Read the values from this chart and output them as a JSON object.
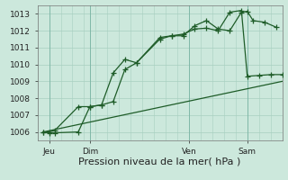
{
  "xlabel": "Pression niveau de la mer( hPa )",
  "ylim": [
    1005.5,
    1013.5
  ],
  "xlim": [
    0,
    21
  ],
  "yticks": [
    1006,
    1007,
    1008,
    1009,
    1010,
    1011,
    1012,
    1013
  ],
  "xtick_positions": [
    1,
    4.5,
    13,
    18
  ],
  "xtick_labels": [
    "Jeu",
    "Dim",
    "Ven",
    "Sam"
  ],
  "vline_positions": [
    1,
    4.5,
    13,
    18
  ],
  "bg_color": "#cce8dc",
  "line_color": "#1e5c28",
  "grid_color": "#a8cfc0",
  "line1_x": [
    0.5,
    1.0,
    1.5,
    3.5,
    4.5,
    5.5,
    6.5,
    7.5,
    8.5,
    10.5,
    11.5,
    12.5,
    13.5,
    14.5,
    15.5,
    16.5,
    17.5,
    18.0,
    18.5,
    19.5,
    20.5
  ],
  "line1_y": [
    1006.0,
    1006.0,
    1006.1,
    1007.5,
    1007.5,
    1007.6,
    1009.5,
    1010.3,
    1010.1,
    1011.6,
    1011.7,
    1011.7,
    1012.3,
    1012.6,
    1012.1,
    1012.0,
    1013.1,
    1013.15,
    1012.6,
    1012.5,
    1012.2
  ],
  "line2_x": [
    0.5,
    1.0,
    1.5,
    3.5,
    4.5,
    5.5,
    6.5,
    7.5,
    8.5,
    10.5,
    11.5,
    12.5,
    13.5,
    14.5,
    15.5,
    16.5,
    17.5,
    18.0,
    19.0,
    20.0,
    21.0
  ],
  "line2_y": [
    1006.0,
    1005.95,
    1005.95,
    1006.0,
    1007.5,
    1007.6,
    1007.8,
    1009.7,
    1010.1,
    1011.5,
    1011.7,
    1011.8,
    1012.1,
    1012.15,
    1012.0,
    1013.1,
    1013.2,
    1009.3,
    1009.35,
    1009.4,
    1009.4
  ],
  "line3_x": [
    0.5,
    21.0
  ],
  "line3_y": [
    1006.0,
    1009.0
  ],
  "marker_size": 4,
  "font_size_label": 8,
  "font_size_tick": 6.5
}
